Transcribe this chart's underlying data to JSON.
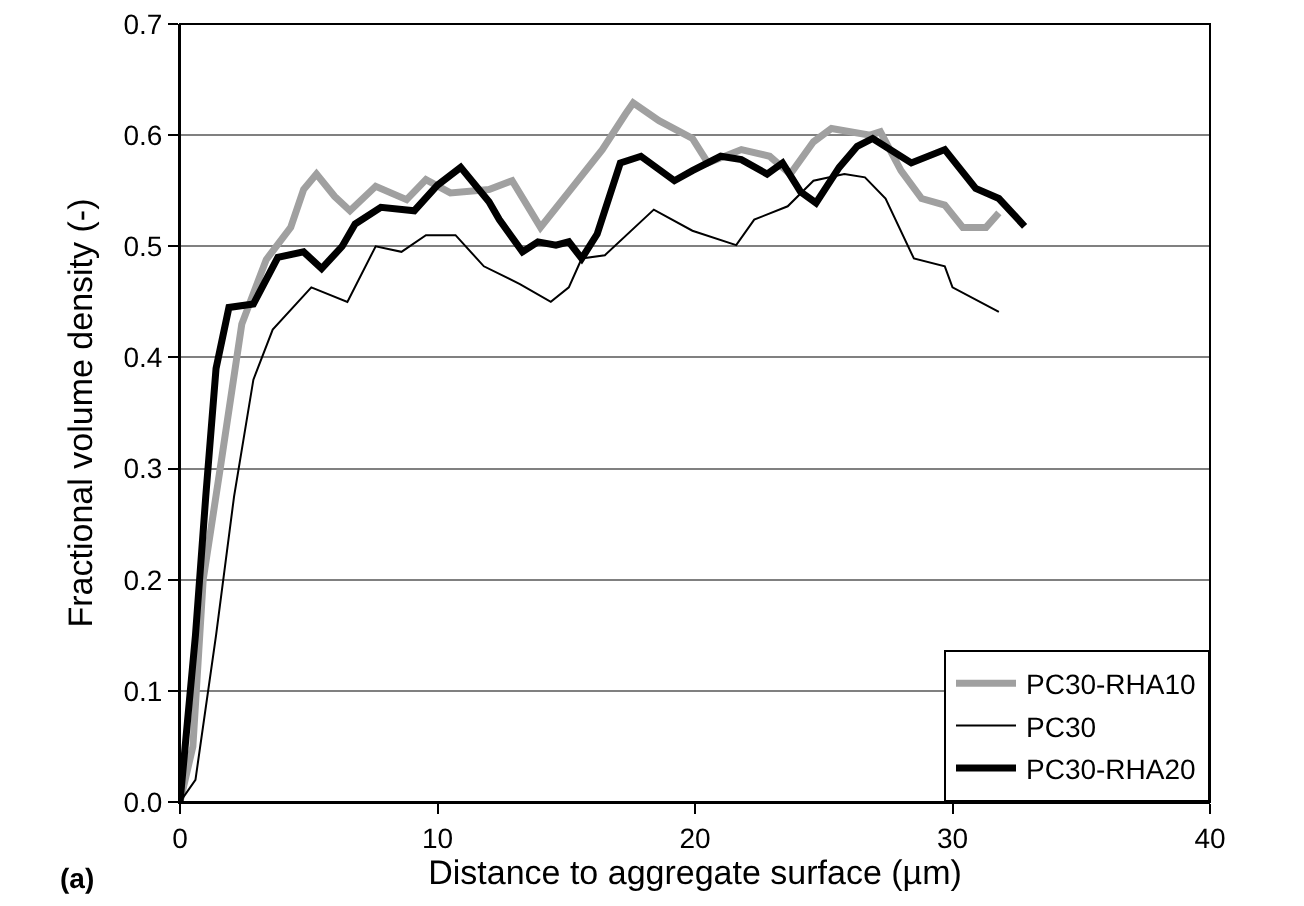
{
  "chart_data": {
    "type": "line",
    "xlabel": "Distance to aggregate surface (µm)",
    "ylabel": "Fractional volume density (-)",
    "xlim": [
      0,
      40
    ],
    "xticks": [
      0,
      10,
      20,
      30,
      40
    ],
    "ylim": [
      0,
      0.7
    ],
    "yticks": [
      {
        "value": 0,
        "label": "0.0"
      },
      0.1,
      0.2,
      0.3,
      0.4,
      0.5,
      0.6,
      0.7
    ],
    "grid": "y",
    "legend": "bottom right",
    "marker": "none",
    "line_style": "solid",
    "annotations": [
      "(a)"
    ],
    "series": [
      {
        "name": "PC30-RHA10",
        "color": "#a0a0a0",
        "x": [
          0,
          0.5,
          0.9,
          1.6,
          2.4,
          3.35,
          4.3,
          4.8,
          5.3,
          6.0,
          6.6,
          7.6,
          8.8,
          9.55,
          10.5,
          12.0,
          12.9,
          14.0,
          15.1,
          16.4,
          17.3,
          17.6,
          18.6,
          19.9,
          20.5,
          21.8,
          22.9,
          23.7,
          24.6,
          25.3,
          26.8,
          27.2,
          28.0,
          28.8,
          29.7,
          30.4,
          31.3,
          31.8
        ],
        "values": [
          0,
          0.05,
          0.2,
          0.306,
          0.43,
          0.488,
          0.517,
          0.551,
          0.565,
          0.545,
          0.532,
          0.554,
          0.542,
          0.56,
          0.548,
          0.551,
          0.559,
          0.517,
          0.549,
          0.587,
          0.619,
          0.629,
          0.613,
          0.597,
          0.575,
          0.587,
          0.581,
          0.565,
          0.594,
          0.606,
          0.6,
          0.603,
          0.568,
          0.543,
          0.537,
          0.517,
          0.517,
          0.53
        ]
      },
      {
        "name": "PC30",
        "color": "#000000",
        "x": [
          0,
          0.6,
          1.4,
          2.1,
          2.85,
          3.6,
          5.1,
          6.5,
          7.6,
          8.6,
          9.55,
          10.7,
          11.8,
          13.2,
          14.4,
          15.1,
          15.6,
          16.5,
          18.4,
          19.9,
          21.6,
          22.3,
          23.6,
          24.6,
          25.8,
          26.6,
          27.4,
          28.5,
          29.7,
          30.0,
          31.8
        ],
        "values": [
          0,
          0.02,
          0.15,
          0.275,
          0.38,
          0.425,
          0.463,
          0.45,
          0.5,
          0.495,
          0.51,
          0.51,
          0.482,
          0.466,
          0.45,
          0.463,
          0.489,
          0.492,
          0.533,
          0.514,
          0.501,
          0.524,
          0.536,
          0.559,
          0.565,
          0.562,
          0.543,
          0.489,
          0.482,
          0.463,
          0.441
        ]
      },
      {
        "name": "PC30-RHA20",
        "color": "#000000",
        "x": [
          0,
          0.6,
          1.0,
          1.4,
          1.9,
          2.85,
          3.8,
          4.8,
          5.5,
          6.3,
          6.8,
          7.8,
          9.1,
          10.0,
          10.9,
          12.0,
          12.4,
          13.3,
          13.9,
          14.6,
          15.1,
          15.6,
          16.2,
          17.1,
          17.9,
          19.2,
          19.9,
          21.0,
          21.8,
          22.8,
          23.4,
          24.1,
          24.7,
          25.6,
          26.3,
          26.9,
          28.4,
          29.7,
          30.9,
          31.8,
          32.8
        ],
        "values": [
          0,
          0.15,
          0.275,
          0.39,
          0.445,
          0.448,
          0.49,
          0.495,
          0.48,
          0.5,
          0.52,
          0.535,
          0.532,
          0.555,
          0.571,
          0.54,
          0.524,
          0.495,
          0.504,
          0.501,
          0.504,
          0.489,
          0.511,
          0.575,
          0.581,
          0.559,
          0.568,
          0.581,
          0.578,
          0.565,
          0.575,
          0.549,
          0.539,
          0.571,
          0.59,
          0.597,
          0.575,
          0.587,
          0.552,
          0.543,
          0.518
        ]
      }
    ]
  }
}
